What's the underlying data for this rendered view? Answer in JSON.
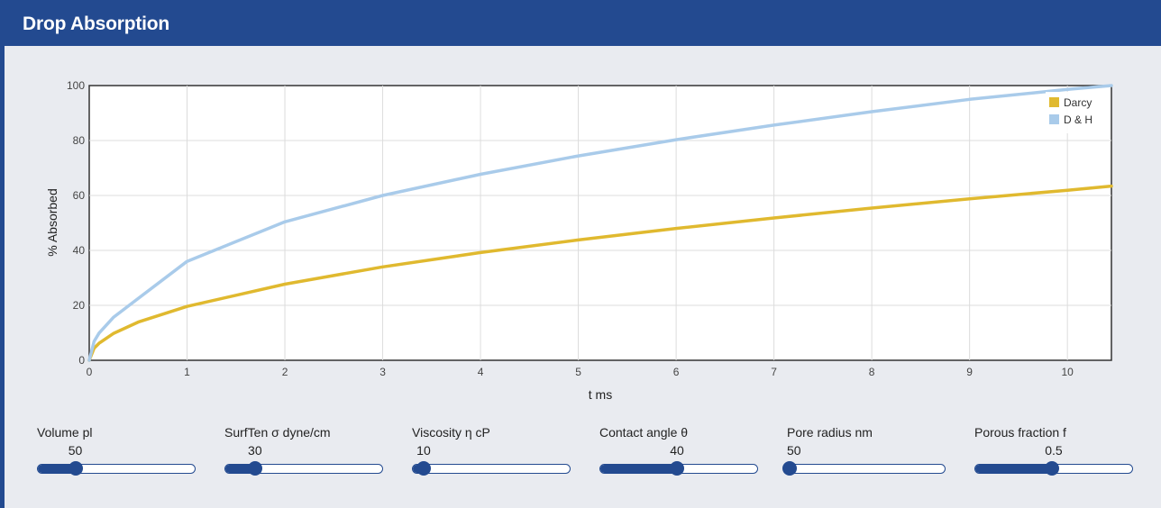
{
  "header": {
    "title": "Drop Absorption"
  },
  "chart_data": {
    "type": "line",
    "xlabel": "t ms",
    "ylabel": "% Absorbed",
    "xlim": [
      0,
      10.45
    ],
    "ylim": [
      0,
      100
    ],
    "xticks": [
      0,
      1,
      2,
      3,
      4,
      5,
      6,
      7,
      8,
      9,
      10
    ],
    "yticks": [
      0,
      20,
      40,
      60,
      80,
      100
    ],
    "grid": true,
    "legend_position": "top-right",
    "series": [
      {
        "name": "Darcy",
        "color": "#e0b92f",
        "x": [
          0,
          0.05,
          0.1,
          0.25,
          0.5,
          1,
          2,
          3,
          4,
          5,
          6,
          7,
          8,
          9,
          10,
          10.45
        ],
        "y": [
          0,
          4.4,
          6.2,
          9.8,
          13.9,
          19.6,
          27.7,
          34,
          39.2,
          43.8,
          48,
          51.8,
          55.4,
          58.8,
          61.9,
          63.4
        ]
      },
      {
        "name": "D & H",
        "color": "#a9cbea",
        "x": [
          0,
          0.05,
          0.1,
          0.25,
          0.5,
          1,
          2,
          3,
          4,
          5,
          6,
          7,
          8,
          9,
          10,
          10.45
        ],
        "y": [
          0,
          6.9,
          9.9,
          15.7,
          22.5,
          36,
          50.4,
          60,
          67.7,
          74.4,
          80.3,
          85.6,
          90.5,
          95,
          98.6,
          100
        ]
      }
    ]
  },
  "controls": [
    {
      "label": "Volume pl",
      "value": "50",
      "fraction": 0.24
    },
    {
      "label": "SurfTen σ dyne/cm",
      "value": "30",
      "fraction": 0.19
    },
    {
      "label": "Viscosity η cP",
      "value": "10",
      "fraction": 0.07
    },
    {
      "label": "Contact angle θ",
      "value": "40",
      "fraction": 0.49
    },
    {
      "label": "Pore radius nm",
      "value": "50",
      "fraction": 0.01
    },
    {
      "label": "Porous fraction f",
      "value": "0.5",
      "fraction": 0.49
    }
  ]
}
